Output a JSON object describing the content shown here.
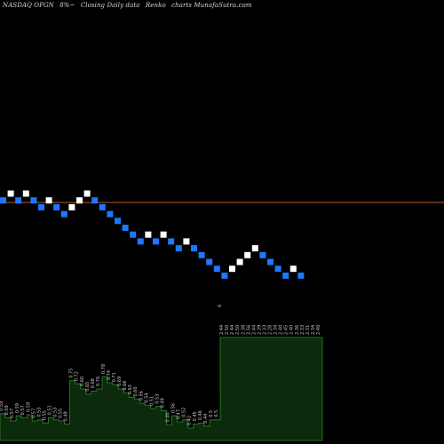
{
  "header": {
    "ticker": "NASDAQ OPGN",
    "change": "8%~",
    "desc": "Closing Daily data",
    "type": "Renko",
    "source": "charts MunafaSutra.com"
  },
  "colors": {
    "background": "#000000",
    "up_brick": "#ffffff",
    "down_brick": "#1e78ff",
    "ref_line": "#b45a28",
    "volume_fill": "#0c2a0c",
    "volume_line": "#2c8a2c",
    "label_text": "#c8c8c8"
  },
  "chart_data": {
    "type": "renko",
    "brick_directions": [
      "d",
      "u",
      "d",
      "u",
      "d",
      "d",
      "u",
      "d",
      "d",
      "u",
      "u",
      "u",
      "d",
      "d",
      "d",
      "d",
      "d",
      "d",
      "d",
      "u",
      "d",
      "u",
      "d",
      "d",
      "u",
      "d",
      "d",
      "d",
      "d",
      "d",
      "u",
      "u",
      "u",
      "u",
      "d",
      "d",
      "d",
      "d",
      "u",
      "d"
    ],
    "brick_levels": [
      0,
      -1,
      0,
      -1,
      0,
      -1,
      -2,
      -1,
      -2,
      -3,
      -2,
      -1,
      0,
      -1,
      -2,
      -3,
      -4,
      -5,
      -6,
      -7,
      -6,
      -7,
      -6,
      -7,
      -8,
      -7,
      -8,
      -9,
      -10,
      -11,
      -12,
      -11,
      -10,
      -9,
      -8,
      -9,
      -10,
      -11,
      -12,
      -11,
      -12
    ],
    "reference_level": -1.3,
    "price_labels": [
      "0.59",
      "0.59",
      "0.57",
      "0.59",
      "0.57",
      "0.59",
      "0.57",
      "0.53",
      "0.55",
      "0.51",
      "0.53",
      "0.55",
      "0.49",
      "0.75",
      "0.72",
      "0.60",
      "0.65",
      "0.68",
      "0.76",
      "0.78",
      "0.74",
      "0.71",
      "0.69",
      "0.66",
      "0.63",
      "0.60",
      "0.56",
      "0.54",
      "0.51",
      "0.53",
      "0.49",
      "0.40",
      "0.56",
      "0.47",
      "0.52",
      "0.42",
      "0.45",
      "0.46",
      "0.44",
      "0.5",
      "0.5",
      "2.44",
      "2.50",
      "2.44",
      "2.50",
      "2.38",
      "2.56",
      "2.44",
      "2.39",
      "2.33",
      "2.28",
      "2.34",
      "2.40",
      "2.45",
      "2.40",
      "2.36",
      "2.33",
      "2.31",
      "2.34",
      "2.40"
    ],
    "volume": [
      0.26,
      0.22,
      0.19,
      0.24,
      0.22,
      0.25,
      0.19,
      0.2,
      0.17,
      0.22,
      0.2,
      0.19,
      0.16,
      0.58,
      0.55,
      0.5,
      0.45,
      0.48,
      0.5,
      0.62,
      0.56,
      0.54,
      0.5,
      0.46,
      0.42,
      0.4,
      0.36,
      0.34,
      0.31,
      0.33,
      0.29,
      0.15,
      0.24,
      0.18,
      0.2,
      0.12,
      0.16,
      0.17,
      0.14,
      0.2,
      0.2,
      1.0,
      1.0,
      1.0,
      1.0,
      1.0,
      1.0,
      1.0,
      1.0,
      1.0,
      1.0,
      1.0,
      1.0,
      1.0,
      1.0,
      1.0,
      1.0,
      1.0,
      1.0,
      1.0
    ],
    "top_marker": "6"
  }
}
